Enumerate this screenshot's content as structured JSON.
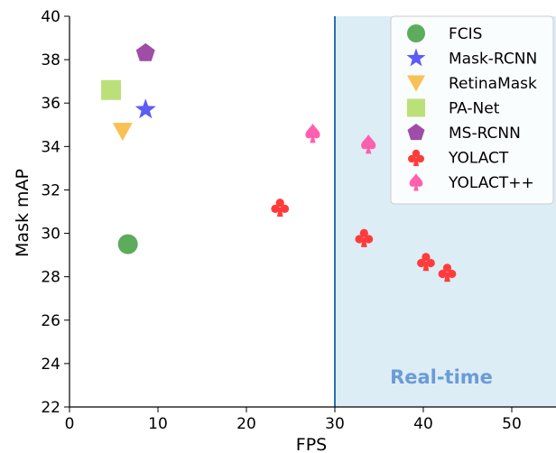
{
  "chart_data": {
    "type": "scatter",
    "title": "",
    "xlabel": "FPS",
    "ylabel": "Mask mAP",
    "xlim": [
      0,
      55
    ],
    "ylim": [
      22,
      40
    ],
    "xticks": [
      "0",
      "10",
      "20",
      "30",
      "40",
      "50"
    ],
    "yticks": [
      "22",
      "24",
      "26",
      "28",
      "30",
      "32",
      "34",
      "36",
      "38",
      "40"
    ],
    "grid": false,
    "legend_position": "top-right",
    "region": {
      "label": "Real-time",
      "x_start": 30,
      "x_end": 55,
      "fill": "#ddedf5",
      "line_color": "#2a6fb3",
      "label_color": "#6b9bd8"
    },
    "series": [
      {
        "name": "FCIS",
        "marker": "circle",
        "color": "#3f9e3f",
        "points": [
          {
            "x": 6.6,
            "y": 29.5
          }
        ]
      },
      {
        "name": "Mask-RCNN",
        "marker": "star",
        "color": "#4a4af5",
        "points": [
          {
            "x": 8.6,
            "y": 35.7
          }
        ]
      },
      {
        "name": "RetinaMask",
        "marker": "triangle-down",
        "color": "#f8b940",
        "points": [
          {
            "x": 6.0,
            "y": 34.7
          }
        ]
      },
      {
        "name": "PA-Net",
        "marker": "square",
        "color": "#b5dd6a",
        "points": [
          {
            "x": 4.7,
            "y": 36.6
          }
        ]
      },
      {
        "name": "MS-RCNN",
        "marker": "pentagon",
        "color": "#953a9c",
        "points": [
          {
            "x": 8.6,
            "y": 38.3
          }
        ]
      },
      {
        "name": "YOLACT",
        "marker": "club",
        "color": "#ff3b3b",
        "points": [
          {
            "x": 23.8,
            "y": 31.2
          },
          {
            "x": 33.3,
            "y": 29.8
          },
          {
            "x": 40.3,
            "y": 28.7
          },
          {
            "x": 42.7,
            "y": 28.2
          }
        ]
      },
      {
        "name": "YOLACT++",
        "marker": "spade",
        "color": "#ff4fa6",
        "points": [
          {
            "x": 27.5,
            "y": 34.6
          },
          {
            "x": 33.8,
            "y": 34.1
          }
        ]
      }
    ]
  }
}
